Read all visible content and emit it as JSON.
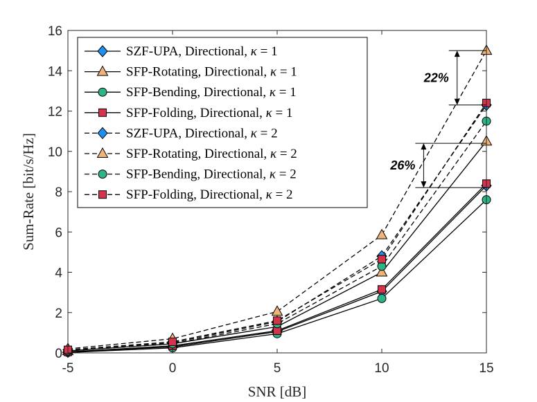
{
  "chart_data": {
    "type": "line",
    "xlabel": "SNR [dB]",
    "ylabel": "Sum-Rate [bit/s/Hz]",
    "x": [
      -5,
      0,
      5,
      10,
      15
    ],
    "xticks": [
      "-5",
      "0",
      "5",
      "10",
      "15"
    ],
    "yticks": [
      "0",
      "2",
      "4",
      "6",
      "8",
      "10",
      "12",
      "14",
      "16"
    ],
    "xlim": [
      -5,
      15
    ],
    "ylim": [
      0,
      16
    ],
    "legend_position": "top-left",
    "series": [
      {
        "name": "SZF-UPA, Directional, κ = 1",
        "label_main": "SZF-UPA, Directional, ",
        "kappa": "1",
        "style": "solid",
        "marker": "diamond",
        "color": "#1f8ff0",
        "values": [
          0.05,
          0.3,
          1.05,
          3.05,
          8.3
        ]
      },
      {
        "name": "SFP-Rotating, Directional, κ = 1",
        "label_main": "SFP-Rotating, Directional, ",
        "kappa": "1",
        "style": "solid",
        "marker": "triangle",
        "color": "#f0b479",
        "values": [
          0.1,
          0.45,
          1.3,
          4.0,
          10.5
        ]
      },
      {
        "name": "SFP-Bending, Directional, κ = 1",
        "label_main": "SFP-Bending, Directional, ",
        "kappa": "1",
        "style": "solid",
        "marker": "circle",
        "color": "#2db487",
        "values": [
          0.02,
          0.25,
          0.95,
          2.7,
          7.6
        ]
      },
      {
        "name": "SFP-Folding, Directional, κ = 1",
        "label_main": "SFP-Folding, Directional, ",
        "kappa": "1",
        "style": "solid",
        "marker": "square",
        "color": "#d7324b",
        "values": [
          0.05,
          0.35,
          1.1,
          3.15,
          8.4
        ]
      },
      {
        "name": "SZF-UPA, Directional, κ = 2",
        "label_main": "SZF-UPA, Directional, ",
        "kappa": "2",
        "style": "dashed",
        "marker": "diamond",
        "color": "#1f8ff0",
        "values": [
          0.15,
          0.5,
          1.55,
          4.8,
          12.3
        ]
      },
      {
        "name": "SFP-Rotating, Directional, κ = 2",
        "label_main": "SFP-Rotating, Directional, ",
        "kappa": "2",
        "style": "dashed",
        "marker": "triangle",
        "color": "#f0b479",
        "values": [
          0.2,
          0.7,
          2.05,
          5.85,
          15.0
        ]
      },
      {
        "name": "SFP-Bending, Directional, κ = 2",
        "label_main": "SFP-Bending, Directional, ",
        "kappa": "2",
        "style": "dashed",
        "marker": "circle",
        "color": "#2db487",
        "values": [
          0.1,
          0.45,
          1.45,
          4.3,
          11.5
        ]
      },
      {
        "name": "SFP-Folding, Directional, κ = 2",
        "label_main": "SFP-Folding, Directional, ",
        "kappa": "2",
        "style": "dashed",
        "marker": "square",
        "color": "#d7324b",
        "values": [
          0.15,
          0.55,
          1.6,
          4.65,
          12.4
        ]
      }
    ],
    "annotations": [
      {
        "text": "22%",
        "x": 13.6,
        "y_low": 12.3,
        "y_high": 15.0
      },
      {
        "text": "26%",
        "x": 12.0,
        "y_low": 8.2,
        "y_high": 10.4
      }
    ]
  }
}
